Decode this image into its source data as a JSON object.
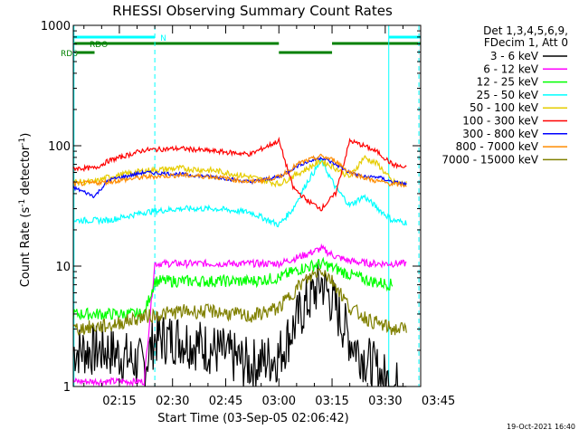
{
  "chart_data": {
    "type": "line",
    "title": "RHESSI Observing Summary Count Rates",
    "xlabel": "Start Time (03-Sep-05 02:06:42)",
    "ylabel_main": "Count Rate (s",
    "ylabel_sup1": "-1",
    "ylabel_mid": " detector",
    "ylabel_sup2": "-1",
    "ylabel_end": ")",
    "yscale": "log",
    "ylim": [
      1,
      1000
    ],
    "xlim_minutes": [
      2.0,
      100.0
    ],
    "x_ticks": [
      {
        "label": "02:15",
        "minute": 15
      },
      {
        "label": "02:30",
        "minute": 30
      },
      {
        "label": "02:45",
        "minute": 45
      },
      {
        "label": "03:00",
        "minute": 60
      },
      {
        "label": "03:15",
        "minute": 75
      },
      {
        "label": "03:30",
        "minute": 90
      },
      {
        "label": "03:45",
        "minute": 105
      }
    ],
    "y_ticks": [
      {
        "label": "1",
        "value": 1
      },
      {
        "label": "10",
        "value": 10
      },
      {
        "label": "100",
        "value": 100
      },
      {
        "label": "1000",
        "value": 1000
      }
    ],
    "legend_header": [
      "Det 1,3,4,5,6,9,",
      "FDecim 1, Att 0"
    ],
    "series": [
      {
        "name": "3 - 6 keV",
        "color": "#000000",
        "x": [
          2,
          12,
          22,
          25,
          32,
          42,
          52,
          60,
          66,
          72,
          76,
          80,
          86,
          92,
          96
        ],
        "y": [
          2,
          2,
          1.5,
          2.5,
          2.5,
          2,
          1.5,
          1.8,
          4,
          7.5,
          4.5,
          2.5,
          1.5,
          1,
          1
        ]
      },
      {
        "name": "6 - 12 keV",
        "color": "#ff00ff",
        "x": [
          2,
          12,
          22,
          25,
          32,
          42,
          52,
          60,
          66,
          72,
          76,
          80,
          86,
          96
        ],
        "y": [
          1.1,
          1.1,
          1.1,
          10.5,
          10.5,
          10.5,
          10.5,
          10.5,
          12,
          14,
          12,
          11,
          10.5,
          10.5
        ]
      },
      {
        "name": "12 - 25 keV",
        "color": "#00ff00",
        "x": [
          2,
          12,
          22,
          25,
          32,
          42,
          52,
          60,
          66,
          72,
          76,
          80,
          86,
          92
        ],
        "y": [
          4,
          4,
          4,
          7.5,
          7.5,
          7.5,
          7.5,
          8,
          9.5,
          10.5,
          9.5,
          8.5,
          7.5,
          7
        ]
      },
      {
        "name": "25 - 50 keV",
        "color": "#00ffff",
        "x": [
          2,
          12,
          22,
          32,
          42,
          52,
          60,
          64,
          68,
          72,
          76,
          80,
          84,
          88,
          92,
          96
        ],
        "y": [
          24,
          24,
          28,
          30,
          30,
          28,
          22,
          30,
          50,
          75,
          45,
          32,
          38,
          30,
          24,
          23
        ]
      },
      {
        "name": "50 - 100 keV",
        "color": "#e6cc00",
        "x": [
          2,
          8,
          12,
          22,
          32,
          42,
          52,
          60,
          66,
          72,
          76,
          80,
          84,
          88,
          92,
          96
        ],
        "y": [
          50,
          50,
          55,
          62,
          65,
          62,
          55,
          48,
          60,
          75,
          65,
          55,
          80,
          70,
          50,
          48
        ]
      },
      {
        "name": "100 - 300 keV",
        "color": "#ff0000",
        "x": [
          2,
          8,
          12,
          22,
          32,
          42,
          52,
          60,
          64,
          68,
          72,
          76,
          80,
          84,
          88,
          92,
          96
        ],
        "y": [
          65,
          65,
          75,
          92,
          95,
          90,
          85,
          110,
          45,
          35,
          30,
          40,
          110,
          100,
          88,
          70,
          65
        ]
      },
      {
        "name": "300 - 800 keV",
        "color": "#0000ff",
        "x": [
          2,
          8,
          12,
          22,
          32,
          42,
          52,
          60,
          66,
          72,
          76,
          80,
          84,
          88,
          92,
          96
        ],
        "y": [
          45,
          38,
          52,
          60,
          58,
          55,
          50,
          55,
          70,
          80,
          70,
          60,
          55,
          55,
          50,
          48
        ]
      },
      {
        "name": "800 - 7000 keV",
        "color": "#ff8c00",
        "x": [
          2,
          12,
          22,
          32,
          42,
          52,
          60,
          66,
          72,
          76,
          80,
          86,
          92,
          96
        ],
        "y": [
          48,
          50,
          55,
          57,
          55,
          50,
          55,
          72,
          82,
          75,
          60,
          52,
          48,
          47
        ]
      },
      {
        "name": "7000 - 15000 keV",
        "color": "#808000",
        "x": [
          2,
          12,
          22,
          32,
          42,
          52,
          60,
          66,
          72,
          76,
          80,
          86,
          92,
          96
        ],
        "y": [
          3,
          3.2,
          3.8,
          4.2,
          4.2,
          3.8,
          4.5,
          7,
          9.5,
          7,
          4.5,
          3.5,
          3,
          3
        ]
      }
    ],
    "flags": [
      {
        "name": "N",
        "label": "N",
        "color": "#00ffff",
        "segments": [
          [
            2,
            25
          ],
          [
            91,
            100
          ]
        ],
        "level": 0
      },
      {
        "name": "RDO",
        "label": "RDO",
        "color": "#008000",
        "segments": [
          [
            2,
            60
          ],
          [
            75,
            100
          ]
        ],
        "level": 1
      },
      {
        "name": "RDS",
        "label": "RDS",
        "color": "#008000",
        "segments": [
          [
            3,
            8
          ],
          [
            60,
            75
          ]
        ],
        "level": 2
      }
    ],
    "vlines": [
      {
        "minute": 2.2,
        "style": "solid"
      },
      {
        "minute": 25,
        "style": "dashed"
      },
      {
        "minute": 91,
        "style": "solid"
      },
      {
        "minute": 99.5,
        "style": "dashed"
      }
    ],
    "timestamp": "19-Oct-2021 16:40"
  }
}
